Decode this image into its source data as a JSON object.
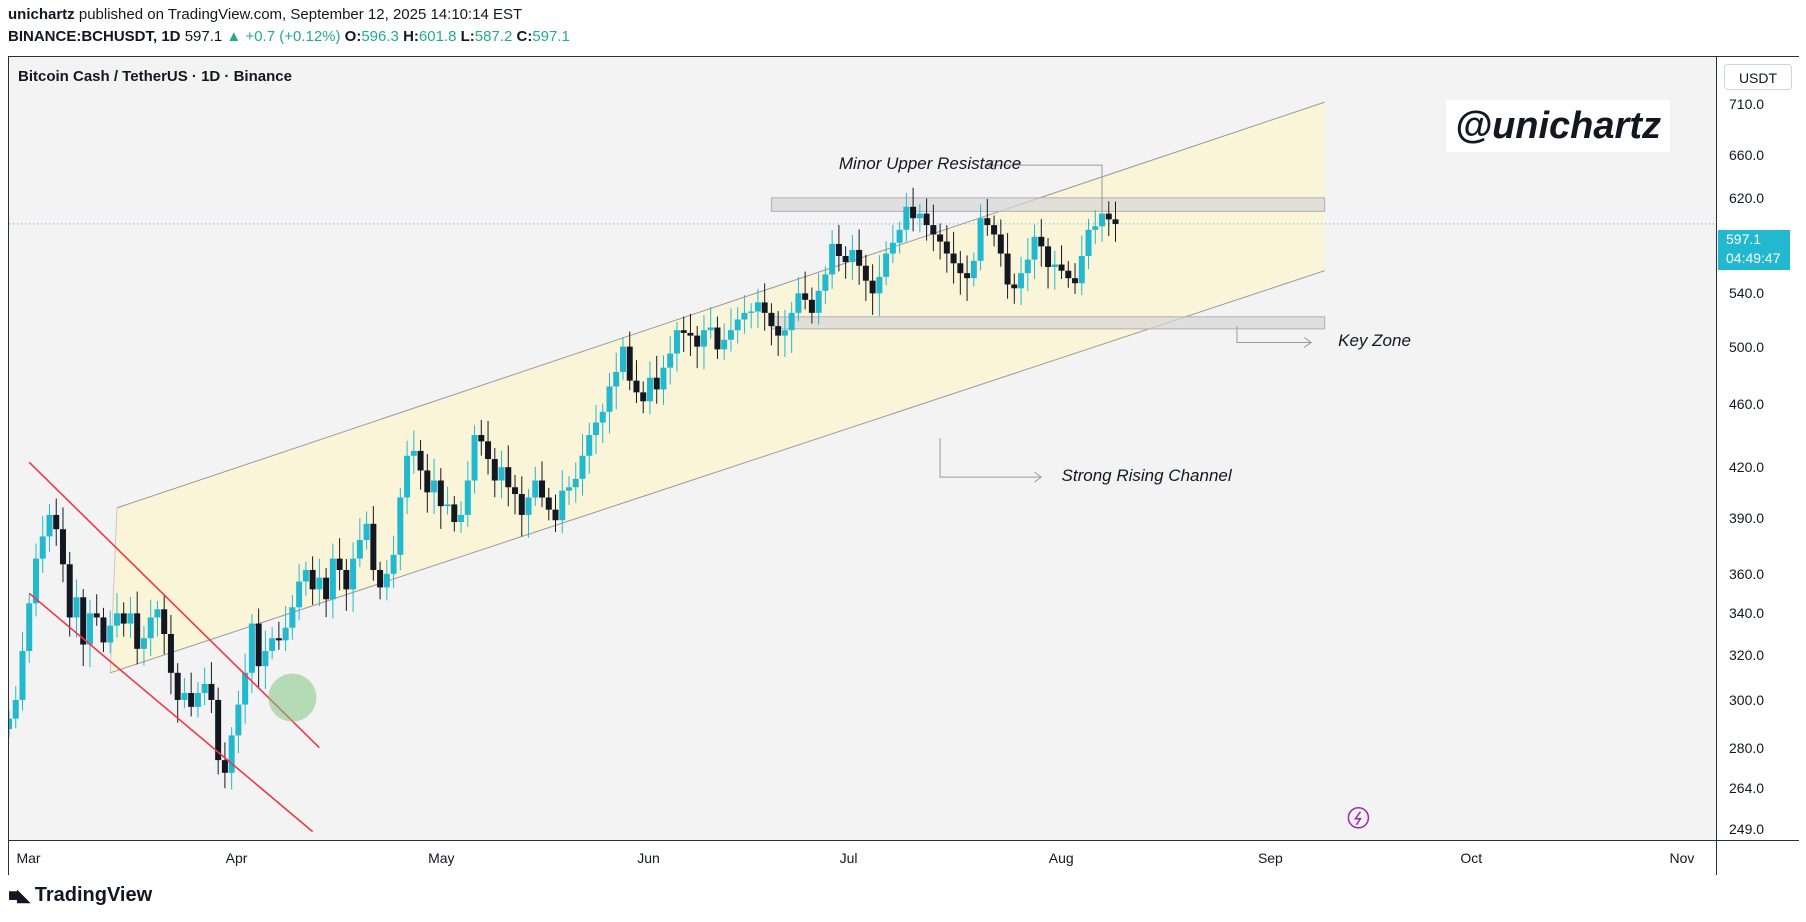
{
  "header": {
    "author": "unichartz",
    "published_text": "published on TradingView.com, September 12, 2025 14:10:14 EST",
    "symbol": "BINANCE:BCHUSDT, 1D",
    "last_price": "597.1",
    "change_arrow": "▲",
    "change": "+0.7 (+0.12%)",
    "o_label": "O:",
    "o_value": "596.3",
    "h_label": "H:",
    "h_value": "601.8",
    "l_label": "L:",
    "l_value": "587.2",
    "c_label": "C:",
    "c_value": "597.1"
  },
  "watermark": "@unichartz",
  "currency_button": "USDT",
  "price_label": {
    "price": "597.1",
    "countdown": "04:49:47"
  },
  "footer": {
    "brand": "TradingView"
  },
  "colors": {
    "up": "#22b8cf",
    "down": "#131722",
    "channel_fill": "#fbf5d6",
    "wedge": "#f23645",
    "breakout": "#81c784",
    "price_line": "#22b8cf"
  },
  "chart_data": {
    "type": "candlestick",
    "title": "Bitcoin Cash / TetherUS · 1D · Binance",
    "y_scale": "log",
    "ylim": [
      245,
      760
    ],
    "y_ticks": [
      {
        "value": 710,
        "label": "710.0"
      },
      {
        "value": 660,
        "label": "660.0"
      },
      {
        "value": 620,
        "label": "620.0"
      },
      {
        "value": 540,
        "label": "540.0"
      },
      {
        "value": 500,
        "label": "500.0"
      },
      {
        "value": 460,
        "label": "460.0"
      },
      {
        "value": 420,
        "label": "420.0"
      },
      {
        "value": 390,
        "label": "390.0"
      },
      {
        "value": 360,
        "label": "360.0"
      },
      {
        "value": 340,
        "label": "340.0"
      },
      {
        "value": 320,
        "label": "320.0"
      },
      {
        "value": 300,
        "label": "300.0"
      },
      {
        "value": 280,
        "label": "280.0"
      },
      {
        "value": 264,
        "label": "264.0"
      },
      {
        "value": 249,
        "label": "249.0"
      }
    ],
    "x_ticks": [
      {
        "day": 0,
        "label": "Mar"
      },
      {
        "day": 31,
        "label": "Apr"
      },
      {
        "day": 61,
        "label": "May"
      },
      {
        "day": 92,
        "label": "Jun"
      },
      {
        "day": 122,
        "label": "Jul"
      },
      {
        "day": 153,
        "label": "Aug"
      },
      {
        "day": 184,
        "label": "Sep"
      },
      {
        "day": 214,
        "label": "Oct"
      },
      {
        "day": 245,
        "label": "Nov"
      }
    ],
    "x_range_days": [
      -2,
      251
    ],
    "current_price": 597.1,
    "closes": [
      292,
      300,
      322,
      345,
      368,
      380,
      392,
      384,
      365,
      338,
      348,
      325,
      340,
      338,
      326,
      334,
      340,
      335,
      340,
      323,
      328,
      338,
      342,
      330,
      312,
      300,
      303,
      297,
      303,
      307,
      300,
      275,
      270,
      285,
      298,
      312,
      335,
      315,
      322,
      328,
      327,
      333,
      343,
      356,
      362,
      352,
      358,
      347,
      368,
      362,
      352,
      368,
      378,
      387,
      362,
      353,
      360,
      370,
      402,
      427,
      430,
      418,
      405,
      412,
      397,
      398,
      388,
      392,
      412,
      440,
      436,
      425,
      412,
      420,
      408,
      404,
      392,
      402,
      412,
      402,
      395,
      389,
      406,
      408,
      413,
      427,
      440,
      448,
      455,
      472,
      482,
      500,
      476,
      468,
      462,
      478,
      470,
      485,
      495,
      512,
      510,
      508,
      500,
      512,
      514,
      498,
      505,
      512,
      520,
      525,
      526,
      533,
      525,
      515,
      508,
      512,
      525,
      540,
      535,
      525,
      542,
      555,
      580,
      570,
      565,
      575,
      562,
      550,
      540,
      553,
      572,
      581,
      592,
      612,
      602,
      606,
      596,
      588,
      582,
      572,
      564,
      556,
      552,
      566,
      602,
      596,
      588,
      572,
      547,
      544,
      556,
      567,
      586,
      578,
      561,
      563,
      558,
      552,
      548,
      570,
      592,
      595,
      606,
      601,
      597
    ],
    "candle_start_day": -2,
    "channel": {
      "upper": [
        [
          14,
          396
        ],
        [
          193,
          712
        ]
      ],
      "lower": [
        [
          13,
          312
        ],
        [
          193,
          558
        ]
      ],
      "end_day": 193
    },
    "falling_wedge": {
      "upper": [
        [
          1,
          423
        ],
        [
          44,
          280
        ]
      ],
      "lower": [
        [
          1,
          350
        ],
        [
          43,
          248
        ]
      ]
    },
    "breakout_marker": {
      "day": 40,
      "price": 301
    },
    "zones": [
      {
        "name": "Minor Upper Resistance",
        "from_day": 111,
        "to_day": 193,
        "top": 620,
        "bottom": 608
      },
      {
        "name": "Key Zone",
        "from_day": 111,
        "to_day": 193,
        "top": 522,
        "bottom": 513
      }
    ],
    "annotations": [
      {
        "text": "Minor Upper Resistance",
        "day": 121,
        "price": 650,
        "arrow_from_day": 160,
        "arrow_to_day": 143,
        "arrow_price": 650
      },
      {
        "text": "Key Zone",
        "day": 195,
        "price": 503,
        "arrow_from_day": 180,
        "arrow_to_day": 191,
        "arrow_price": 503
      },
      {
        "text": "Strong Rising Channel",
        "day": 154,
        "price": 414,
        "arrow_from_day": 136,
        "arrow_to_day": 151,
        "arrow_price": 414
      }
    ]
  }
}
